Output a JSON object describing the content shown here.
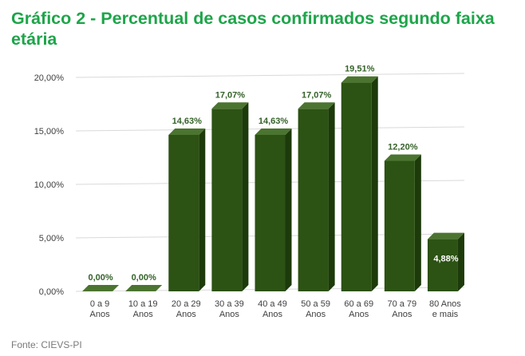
{
  "title": "Gráfico 2 - Percentual de casos confirmados segundo faixa etária",
  "source": "Fonte: CIEVS-PI",
  "chart_data": {
    "type": "bar",
    "title": "Gráfico 2 - Percentual de casos confirmados segundo faixa etária",
    "xlabel": "",
    "ylabel": "",
    "categories": [
      [
        "0 a 9",
        "Anos"
      ],
      [
        "10 a 19",
        "Anos"
      ],
      [
        "20 a 29",
        "Anos"
      ],
      [
        "30 a 39",
        "Anos"
      ],
      [
        "40 a 49",
        "Anos"
      ],
      [
        "50 a 59",
        "Anos"
      ],
      [
        "60 a 69",
        "Anos"
      ],
      [
        "70 a 79",
        "Anos"
      ],
      [
        "80 Anos",
        "e mais"
      ]
    ],
    "values": [
      0,
      0,
      14.63,
      17.07,
      14.63,
      17.07,
      19.51,
      12.2,
      4.88
    ],
    "data_labels": [
      "0,00%",
      "0,00%",
      "14,63%",
      "17,07%",
      "14,63%",
      "17,07%",
      "19,51%",
      "12,20%",
      "4,88%"
    ],
    "yticks": [
      0,
      5,
      10,
      15,
      20
    ],
    "ytick_labels": [
      "0,00%",
      "5,00%",
      "10,00%",
      "15,00%",
      "20,00%"
    ],
    "ylim": [
      0,
      20
    ],
    "grid": true,
    "legend": "none",
    "bar_style": "3d",
    "colors": {
      "bar_front": "#2c5214",
      "bar_side": "#1c3a0a",
      "bar_top": "#4b7430",
      "label_outside": "#35622a",
      "label_inside": "#ffffff",
      "grid": "#d9d9d9",
      "axis_text": "#404040",
      "title": "#1ea54a",
      "source": "#7a7a7a"
    }
  }
}
